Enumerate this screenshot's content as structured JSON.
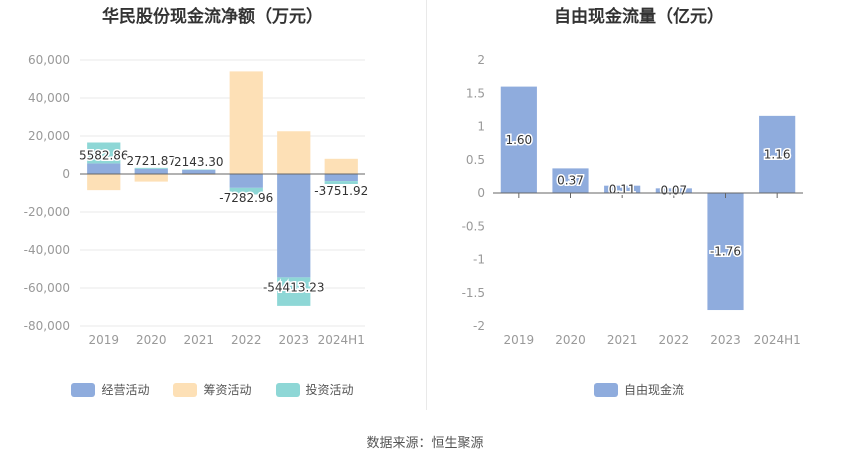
{
  "colors": {
    "operating": "#8facdd",
    "financing": "#fde0b6",
    "investing": "#8ed7d6",
    "fcf": "#8facdd",
    "grid": "#e9e9e9",
    "axis": "#666666",
    "tick": "#999999"
  },
  "chart_data": [
    {
      "type": "bar",
      "title": "华民股份现金流净额（万元）",
      "categories": [
        "2019",
        "2020",
        "2021",
        "2022",
        "2023",
        "2024H1"
      ],
      "ylim": [
        -80000,
        60000
      ],
      "yticks": [
        60000,
        40000,
        20000,
        0,
        -20000,
        -40000,
        -60000,
        -80000
      ],
      "ytick_labels": [
        "60,000",
        "40,000",
        "20,000",
        "0",
        "-20,000",
        "-40,000",
        "-60,000",
        "-80,000"
      ],
      "stacked": true,
      "series": [
        {
          "name": "经营活动",
          "color_key": "operating",
          "values": [
            5582.86,
            2721.87,
            2143.3,
            -7282.96,
            -54413.23,
            -3751.92
          ]
        },
        {
          "name": "筹资活动",
          "color_key": "financing",
          "values": [
            -8500,
            -4000,
            -400,
            54000,
            22500,
            8000
          ]
        },
        {
          "name": "投资活动",
          "color_key": "investing",
          "values": [
            11000,
            500,
            200,
            -3500,
            -15000,
            -1500
          ]
        }
      ],
      "data_labels": [
        "5582.86",
        "2721.87",
        "2143.30",
        "-7282.96",
        "-54413.23",
        "-3751.92"
      ]
    },
    {
      "type": "bar",
      "title": "自由现金流量（亿元）",
      "categories": [
        "2019",
        "2020",
        "2021",
        "2022",
        "2023",
        "2024H1"
      ],
      "ylim": [
        -2,
        2
      ],
      "yticks": [
        2,
        1.5,
        1,
        0.5,
        0,
        -0.5,
        -1,
        -1.5,
        -2
      ],
      "ytick_labels": [
        "2",
        "1.5",
        "1",
        "0.5",
        "0",
        "-0.5",
        "-1",
        "-1.5",
        "-2"
      ],
      "series": [
        {
          "name": "自由现金流",
          "color_key": "fcf",
          "values": [
            1.6,
            0.37,
            0.11,
            0.07,
            -1.76,
            1.16
          ]
        }
      ],
      "data_labels": [
        "1.60",
        "0.37",
        "0.11",
        "0.07",
        "-1.76",
        "1.16"
      ]
    }
  ],
  "footer": {
    "source": "数据来源：恒生聚源"
  }
}
